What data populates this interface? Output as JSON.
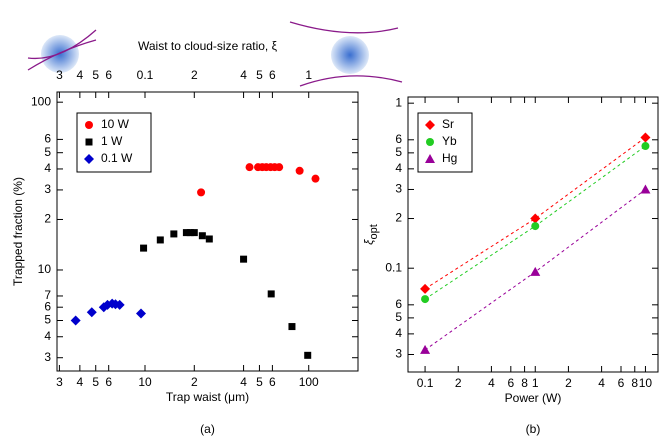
{
  "chart_data": [
    {
      "type": "scatter",
      "x2label": "Waist to cloud-size ratio, ξ",
      "xlabel": "Trap waist (μm)",
      "ylabel": "Trapped fraction (%)",
      "caption": "(a)",
      "log_x": true,
      "log_y": true,
      "xlim": [
        2.9,
        200
      ],
      "ylim": [
        2.5,
        115
      ],
      "x2lim": [
        0.029,
        2
      ],
      "xticks": [
        3,
        4,
        5,
        6,
        10,
        {
          "value": 20,
          "label": "2"
        },
        {
          "value": 40,
          "label": "4"
        },
        {
          "value": 50,
          "label": "5"
        },
        {
          "value": 60,
          "label": "6"
        },
        100
      ],
      "x2ticks": [
        {
          "value": 0.03,
          "label": "3"
        },
        {
          "value": 0.04,
          "label": "4"
        },
        {
          "value": 0.05,
          "label": "5"
        },
        {
          "value": 0.06,
          "label": "6"
        },
        0.1,
        {
          "value": 0.2,
          "label": "2"
        },
        {
          "value": 0.4,
          "label": "4"
        },
        {
          "value": 0.5,
          "label": "5"
        },
        {
          "value": 0.6,
          "label": "6"
        },
        1
      ],
      "yticks": [
        3,
        4,
        5,
        6,
        7,
        10,
        {
          "value": 20,
          "label": "2"
        },
        {
          "value": 30,
          "label": "3"
        },
        {
          "value": 40,
          "label": "4"
        },
        {
          "value": 50,
          "label": "5"
        },
        {
          "value": 60,
          "label": "6"
        },
        100
      ],
      "legend_position": "upper left",
      "series": [
        {
          "name": "10 W",
          "color": "#ff0000",
          "marker": "circle",
          "x": [
            22,
            43.5,
            49,
            52,
            55,
            58.5,
            62,
            66,
            88,
            110
          ],
          "values": [
            29,
            41,
            41,
            41,
            41,
            41,
            41,
            41,
            39,
            35
          ]
        },
        {
          "name": "1 W",
          "color": "#000000",
          "marker": "square",
          "x": [
            9.8,
            12.4,
            15,
            17.9,
            18.9,
            20,
            22.4,
            24.7,
            40,
            59,
            79,
            98.6
          ],
          "values": [
            13.5,
            15.1,
            16.4,
            16.7,
            16.7,
            16.7,
            16,
            15.3,
            11.6,
            7.2,
            4.6,
            3.1
          ]
        },
        {
          "name": "0.1 W",
          "color": "#0000cc",
          "marker": "diamond",
          "x": [
            3.77,
            4.73,
            5.6,
            5.9,
            6.3,
            6.6,
            7.0,
            9.45
          ],
          "values": [
            5.0,
            5.6,
            6.0,
            6.2,
            6.3,
            6.25,
            6.2,
            5.5
          ]
        }
      ]
    },
    {
      "type": "scatter",
      "xlabel": "Power (W)",
      "ylabel": "ξ",
      "ylabel_sub": "opt",
      "caption": "(b)",
      "log_x": true,
      "log_y": true,
      "xlim": [
        0.07,
        13
      ],
      "ylim": [
        0.0235,
        1.09
      ],
      "xticks": [
        0.1,
        {
          "value": 0.2,
          "label": "2"
        },
        {
          "value": 0.4,
          "label": "4"
        },
        {
          "value": 0.6,
          "label": "6"
        },
        {
          "value": 0.8,
          "label": "8"
        },
        1,
        {
          "value": 2,
          "label": "2"
        },
        {
          "value": 4,
          "label": "4"
        },
        {
          "value": 6,
          "label": "6"
        },
        {
          "value": 8,
          "label": "8"
        },
        10
      ],
      "yticks": [
        {
          "value": 0.03,
          "label": "3"
        },
        {
          "value": 0.04,
          "label": "4"
        },
        {
          "value": 0.05,
          "label": "5"
        },
        {
          "value": 0.06,
          "label": "6"
        },
        0.1,
        {
          "value": 0.2,
          "label": "2"
        },
        {
          "value": 0.3,
          "label": "3"
        },
        {
          "value": 0.4,
          "label": "4"
        },
        {
          "value": 0.5,
          "label": "5"
        },
        {
          "value": 0.6,
          "label": "6"
        },
        1
      ],
      "line_style": "dashed",
      "legend_position": "upper left",
      "series": [
        {
          "name": "Sr",
          "color": "#ff0000",
          "marker": "diamond",
          "x": [
            0.1,
            1,
            10
          ],
          "values": [
            0.075,
            0.2,
            0.62
          ]
        },
        {
          "name": "Yb",
          "color": "#22cc22",
          "marker": "circle",
          "x": [
            0.1,
            1,
            10
          ],
          "values": [
            0.065,
            0.18,
            0.55
          ]
        },
        {
          "name": "Hg",
          "color": "#990099",
          "marker": "triangle",
          "x": [
            0.1,
            1,
            10
          ],
          "values": [
            0.032,
            0.095,
            0.3
          ]
        }
      ]
    }
  ]
}
